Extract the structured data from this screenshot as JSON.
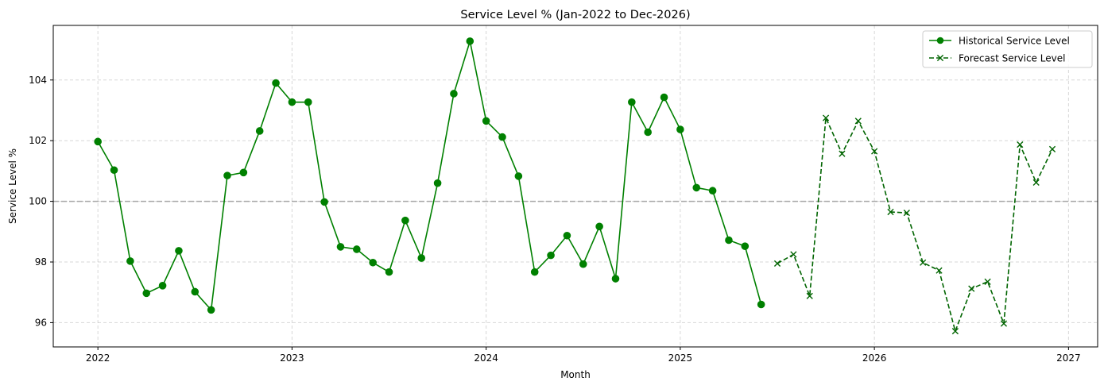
{
  "chart_data": {
    "type": "line",
    "title": "Service Level % (Jan-2022 to Dec-2026)",
    "xlabel": "Month",
    "ylabel": "Service Level %",
    "xlim": [
      2021.77,
      2027.15
    ],
    "ylim": [
      95.2,
      105.8
    ],
    "x_ticks": [
      2022,
      2023,
      2024,
      2025,
      2026,
      2027
    ],
    "y_ticks": [
      96,
      98,
      100,
      102,
      104
    ],
    "grid": true,
    "reference_line": {
      "y": 100,
      "color": "#a6a6a6",
      "style": "dashed"
    },
    "legend_position": "top-right",
    "series": [
      {
        "name": "Historical Service Level",
        "color": "#008000",
        "line_style": "solid",
        "marker": "circle",
        "x": [
          "2022-01",
          "2022-02",
          "2022-03",
          "2022-04",
          "2022-05",
          "2022-06",
          "2022-07",
          "2022-08",
          "2022-09",
          "2022-10",
          "2022-11",
          "2022-12",
          "2023-01",
          "2023-02",
          "2023-03",
          "2023-04",
          "2023-05",
          "2023-06",
          "2023-07",
          "2023-08",
          "2023-09",
          "2023-10",
          "2023-11",
          "2023-12",
          "2024-01",
          "2024-02",
          "2024-03",
          "2024-04",
          "2024-05",
          "2024-06",
          "2024-07",
          "2024-08",
          "2024-09",
          "2024-10",
          "2024-11",
          "2024-12",
          "2025-01",
          "2025-02",
          "2025-03",
          "2025-04",
          "2025-05",
          "2025-06"
        ],
        "values": [
          101.97,
          101.03,
          98.03,
          96.97,
          97.22,
          98.37,
          97.02,
          96.42,
          100.85,
          100.95,
          102.32,
          103.9,
          103.27,
          103.27,
          99.98,
          98.5,
          98.42,
          97.98,
          97.67,
          99.37,
          98.13,
          100.6,
          103.55,
          105.28,
          102.65,
          102.12,
          100.83,
          97.67,
          98.22,
          98.87,
          97.93,
          99.17,
          97.45,
          103.27,
          102.28,
          103.43,
          102.37,
          100.45,
          100.35,
          98.72,
          98.52,
          96.6
        ]
      },
      {
        "name": "Forecast Service Level",
        "color": "#006400",
        "line_style": "dashed",
        "marker": "x",
        "x": [
          "2025-07",
          "2025-08",
          "2025-09",
          "2025-10",
          "2025-11",
          "2025-12",
          "2026-01",
          "2026-02",
          "2026-03",
          "2026-04",
          "2026-05",
          "2026-06",
          "2026-07",
          "2026-08",
          "2026-09",
          "2026-10",
          "2026-11",
          "2026-12"
        ],
        "values": [
          97.95,
          98.25,
          96.88,
          102.75,
          101.57,
          102.65,
          101.65,
          99.65,
          99.62,
          97.98,
          97.72,
          95.72,
          97.12,
          97.35,
          95.97,
          101.87,
          100.62,
          101.72
        ]
      }
    ]
  }
}
